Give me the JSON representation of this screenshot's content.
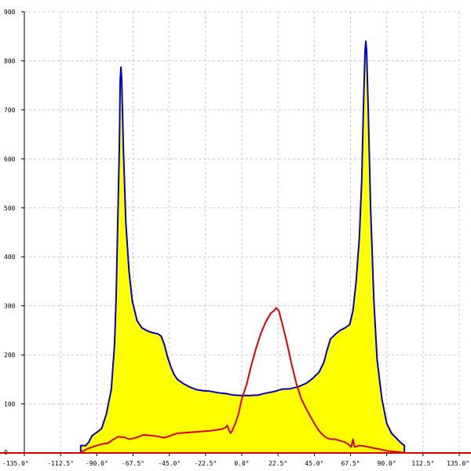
{
  "chart_data": {
    "type": "area",
    "title": "",
    "xlabel": "",
    "ylabel": "",
    "xlim": [
      -135,
      135
    ],
    "ylim": [
      0,
      900
    ],
    "grid": true,
    "x_ticks": [
      -135,
      -112.5,
      -90,
      -67.5,
      -45,
      -22.5,
      0,
      22.5,
      45,
      67.5,
      90,
      112.5,
      135
    ],
    "x_tick_labels": [
      "-135.0°",
      "-112.5°",
      "-90.0°",
      "-67.5°",
      "-45.0°",
      "-22.5°",
      "0.0°",
      "22.5°",
      "45.0°",
      "67.5°",
      "90.0°",
      "112.5°",
      "135.0°"
    ],
    "y_ticks": [
      0,
      100,
      200,
      300,
      400,
      500,
      600,
      700,
      800,
      900
    ],
    "y_tick_labels": [
      "0",
      "100",
      "200",
      "300",
      "400",
      "500",
      "600",
      "700",
      "800",
      "900"
    ],
    "series": [
      {
        "color": "#0000cc",
        "fill": "#ffff00",
        "points": [
          [
            -100,
            0
          ],
          [
            -100,
            15
          ],
          [
            -97,
            15
          ],
          [
            -95,
            22
          ],
          [
            -93,
            35
          ],
          [
            -90,
            42
          ],
          [
            -87,
            50
          ],
          [
            -84,
            80
          ],
          [
            -81,
            130
          ],
          [
            -79,
            220
          ],
          [
            -78,
            320
          ],
          [
            -77,
            470
          ],
          [
            -76,
            630
          ],
          [
            -75.5,
            760
          ],
          [
            -75,
            787
          ],
          [
            -74.5,
            760
          ],
          [
            -73.5,
            620
          ],
          [
            -72,
            470
          ],
          [
            -70,
            370
          ],
          [
            -68,
            310
          ],
          [
            -65,
            270
          ],
          [
            -62,
            255
          ],
          [
            -58,
            248
          ],
          [
            -55,
            245
          ],
          [
            -52,
            243
          ],
          [
            -50,
            238
          ],
          [
            -48,
            220
          ],
          [
            -46,
            195
          ],
          [
            -44,
            175
          ],
          [
            -42,
            160
          ],
          [
            -40,
            150
          ],
          [
            -36,
            141
          ],
          [
            -32,
            134
          ],
          [
            -28,
            129
          ],
          [
            -24,
            127
          ],
          [
            -20,
            126
          ],
          [
            -15,
            123
          ],
          [
            -10,
            121
          ],
          [
            -5,
            118
          ],
          [
            0,
            117
          ],
          [
            5,
            117
          ],
          [
            10,
            118
          ],
          [
            15,
            122
          ],
          [
            20,
            125
          ],
          [
            25,
            130
          ],
          [
            30,
            131
          ],
          [
            35,
            135
          ],
          [
            40,
            142
          ],
          [
            44,
            152
          ],
          [
            48,
            165
          ],
          [
            51,
            185
          ],
          [
            53,
            210
          ],
          [
            55,
            232
          ],
          [
            58,
            242
          ],
          [
            61,
            250
          ],
          [
            64,
            255
          ],
          [
            67,
            262
          ],
          [
            69,
            290
          ],
          [
            71,
            350
          ],
          [
            73,
            440
          ],
          [
            74.5,
            560
          ],
          [
            75.5,
            700
          ],
          [
            76.5,
            818
          ],
          [
            77,
            840
          ],
          [
            77.5,
            820
          ],
          [
            78.5,
            700
          ],
          [
            80,
            500
          ],
          [
            82,
            310
          ],
          [
            84,
            190
          ],
          [
            87,
            110
          ],
          [
            90,
            60
          ],
          [
            93,
            40
          ],
          [
            96,
            30
          ],
          [
            99,
            20
          ],
          [
            101,
            15
          ],
          [
            101,
            0
          ]
        ]
      },
      {
        "color": "#dd0000",
        "fill": "none",
        "points": [
          [
            -140,
            0
          ],
          [
            -100,
            0
          ],
          [
            -99,
            3
          ],
          [
            -96,
            8
          ],
          [
            -93,
            12
          ],
          [
            -90,
            15
          ],
          [
            -87,
            18
          ],
          [
            -83,
            20
          ],
          [
            -80,
            27
          ],
          [
            -77,
            33
          ],
          [
            -73,
            32
          ],
          [
            -70,
            28
          ],
          [
            -67,
            30
          ],
          [
            -64,
            33
          ],
          [
            -61,
            37
          ],
          [
            -58,
            36
          ],
          [
            -55,
            35
          ],
          [
            -52,
            34
          ],
          [
            -49,
            31
          ],
          [
            -46,
            33
          ],
          [
            -43,
            37
          ],
          [
            -40,
            40
          ],
          [
            -36,
            41
          ],
          [
            -32,
            42
          ],
          [
            -28,
            43
          ],
          [
            -24,
            44
          ],
          [
            -20,
            45
          ],
          [
            -16,
            47
          ],
          [
            -12,
            49
          ],
          [
            -10,
            52
          ],
          [
            -9,
            56
          ],
          [
            -8,
            47
          ],
          [
            -7,
            40
          ],
          [
            -6,
            45
          ],
          [
            -4,
            60
          ],
          [
            -2,
            80
          ],
          [
            0,
            110
          ],
          [
            3,
            140
          ],
          [
            6,
            180
          ],
          [
            9,
            215
          ],
          [
            12,
            245
          ],
          [
            15,
            268
          ],
          [
            18,
            285
          ],
          [
            20,
            290
          ],
          [
            21.5,
            296
          ],
          [
            23,
            290
          ],
          [
            25,
            265
          ],
          [
            28,
            225
          ],
          [
            31,
            180
          ],
          [
            34,
            140
          ],
          [
            37,
            110
          ],
          [
            40,
            90
          ],
          [
            43,
            72
          ],
          [
            46,
            55
          ],
          [
            48,
            45
          ],
          [
            50,
            38
          ],
          [
            52,
            32
          ],
          [
            55,
            28
          ],
          [
            58,
            28
          ],
          [
            61,
            25
          ],
          [
            64,
            22
          ],
          [
            66,
            18
          ],
          [
            68,
            12
          ],
          [
            69,
            28
          ],
          [
            70,
            12
          ],
          [
            73,
            15
          ],
          [
            76,
            14
          ],
          [
            79,
            12
          ],
          [
            82,
            10
          ],
          [
            85,
            8
          ],
          [
            88,
            6
          ],
          [
            91,
            4
          ],
          [
            94,
            3
          ],
          [
            97,
            2
          ],
          [
            100,
            1
          ],
          [
            102,
            0
          ],
          [
            140,
            0
          ]
        ]
      }
    ]
  }
}
